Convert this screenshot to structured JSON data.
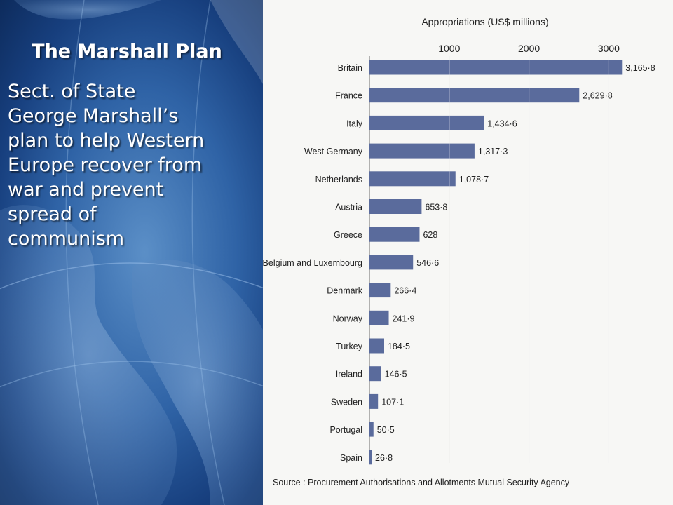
{
  "slide": {
    "title": "The Marshall Plan",
    "body_lines": [
      "Sect. of State",
      "George Marshall’s",
      "plan to help Western",
      "Europe recover from",
      "war and prevent",
      "spread of",
      "communism"
    ]
  },
  "chart_data": {
    "type": "bar",
    "orientation": "horizontal",
    "xlabel": "Appropriations (US$ millions)",
    "x_ticks": [
      "1000",
      "2000",
      "3000"
    ],
    "xlim": [
      0,
      3300
    ],
    "categories": [
      "Britain",
      "France",
      "Italy",
      "West Germany",
      "Netherlands",
      "Austria",
      "Greece",
      "Belgium and Luxembourg",
      "Denmark",
      "Norway",
      "Turkey",
      "Ireland",
      "Sweden",
      "Portugal",
      "Spain"
    ],
    "values": [
      3165.8,
      2629.8,
      1434.6,
      1317.3,
      1078.7,
      653.8,
      628,
      546.6,
      266.4,
      241.9,
      184.5,
      146.5,
      107.1,
      50.5,
      26.8
    ],
    "data_labels": [
      "3,165·8",
      "2,629·8",
      "1,434·6",
      "1,317·3",
      "1,078·7",
      "653·8",
      "628",
      "546·6",
      "266·4",
      "241·9",
      "184·5",
      "146·5",
      "107·1",
      "50·5",
      "26·8"
    ],
    "bar_color": "#5a6b9c",
    "source": "Source : Procurement Authorisations and Allotments Mutual Security Agency"
  }
}
